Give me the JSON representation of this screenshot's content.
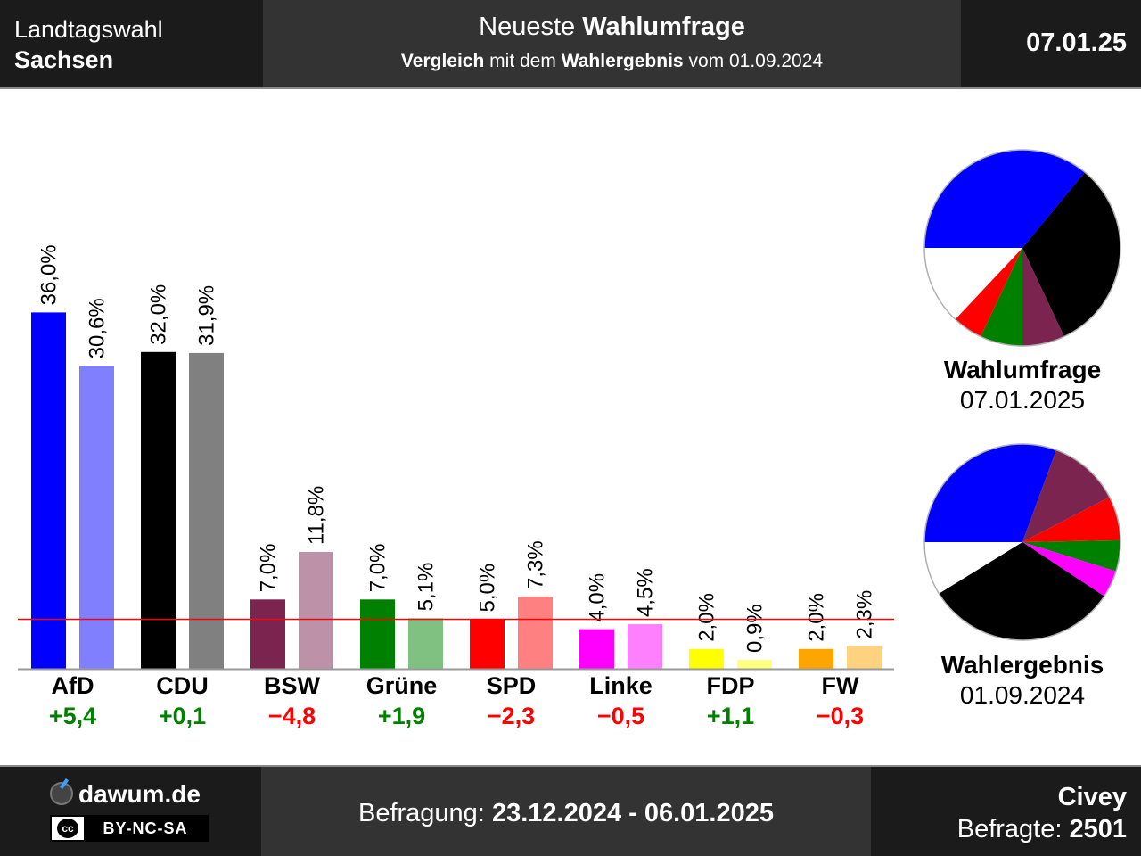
{
  "header": {
    "region_label": "Landtagswahl",
    "region_name": "Sachsen",
    "title_prefix": "Neueste",
    "title_main": "Wahlumfrage",
    "subtitle_a": "Vergleich",
    "subtitle_b": "mit dem",
    "subtitle_c": "Wahlergebnis",
    "subtitle_d": "vom 01.09.2024",
    "date": "07.01.25"
  },
  "chart_data": {
    "type": "bar",
    "categories": [
      "AfD",
      "CDU",
      "BSW",
      "Grüne",
      "SPD",
      "Linke",
      "FDP",
      "FW"
    ],
    "series": [
      {
        "values": [
          36.0,
          32.0,
          7.0,
          7.0,
          5.0,
          4.0,
          2.0,
          2.0
        ],
        "labels": [
          "36,0%",
          "32,0%",
          "7,0%",
          "7,0%",
          "5,0%",
          "4,0%",
          "2,0%",
          "2,0%"
        ]
      },
      {
        "values": [
          30.6,
          31.9,
          11.8,
          5.1,
          7.3,
          4.5,
          0.9,
          2.3
        ],
        "labels": [
          "30,6%",
          "31,9%",
          "11,8%",
          "5,1%",
          "7,3%",
          "4,5%",
          "0,9%",
          "2,3%"
        ]
      }
    ],
    "colors_poll": [
      "#0000ff",
      "#000000",
      "#7b2450",
      "#008000",
      "#ff0000",
      "#ff00ff",
      "#ffff00",
      "#ffa500"
    ],
    "colors_result": [
      "#8080ff",
      "#808080",
      "#bd91a8",
      "#80c080",
      "#ff8080",
      "#ff80ff",
      "#ffff80",
      "#ffd280"
    ],
    "changes": [
      "+5,4",
      "+0,1",
      "−4,8",
      "+1,9",
      "−2,3",
      "−0,5",
      "+1,1",
      "−0,3"
    ],
    "change_signs": [
      "pos",
      "pos",
      "neg",
      "pos",
      "neg",
      "neg",
      "pos",
      "neg"
    ],
    "positive_color": "#008000",
    "negative_color": "#ff0000",
    "threshold": 5.0,
    "threshold_color": "#ff0000",
    "ylim": [
      0,
      40
    ]
  },
  "pies": [
    {
      "caption_title": "Wahlumfrage",
      "caption_date": "07.01.2025",
      "slices": [
        {
          "party": "AfD",
          "value": 36.0,
          "color": "#0000ff"
        },
        {
          "party": "CDU",
          "value": 32.0,
          "color": "#000000"
        },
        {
          "party": "BSW",
          "value": 7.0,
          "color": "#7b2450"
        },
        {
          "party": "Grüne",
          "value": 7.0,
          "color": "#008000"
        },
        {
          "party": "SPD",
          "value": 5.0,
          "color": "#ff0000"
        }
      ]
    },
    {
      "caption_title": "Wahlergebnis",
      "caption_date": "01.09.2024",
      "slices": [
        {
          "party": "AfD",
          "value": 30.6,
          "color": "#0000ff"
        },
        {
          "party": "BSW",
          "value": 11.8,
          "color": "#7b2450"
        },
        {
          "party": "SPD",
          "value": 7.3,
          "color": "#ff0000"
        },
        {
          "party": "Grüne",
          "value": 5.1,
          "color": "#008000"
        },
        {
          "party": "Linke",
          "value": 4.5,
          "color": "#ff00ff"
        },
        {
          "party": "CDU",
          "value": 31.9,
          "color": "#000000"
        }
      ]
    }
  ],
  "footer": {
    "brand": "dawum.de",
    "license_icon": "cc-icon",
    "license": "BY-NC-SA",
    "period_label": "Befragung:",
    "period_value": "23.12.2024 - 06.01.2025",
    "institute": "Civey",
    "respondents_label": "Befragte:",
    "respondents_value": "2501"
  }
}
